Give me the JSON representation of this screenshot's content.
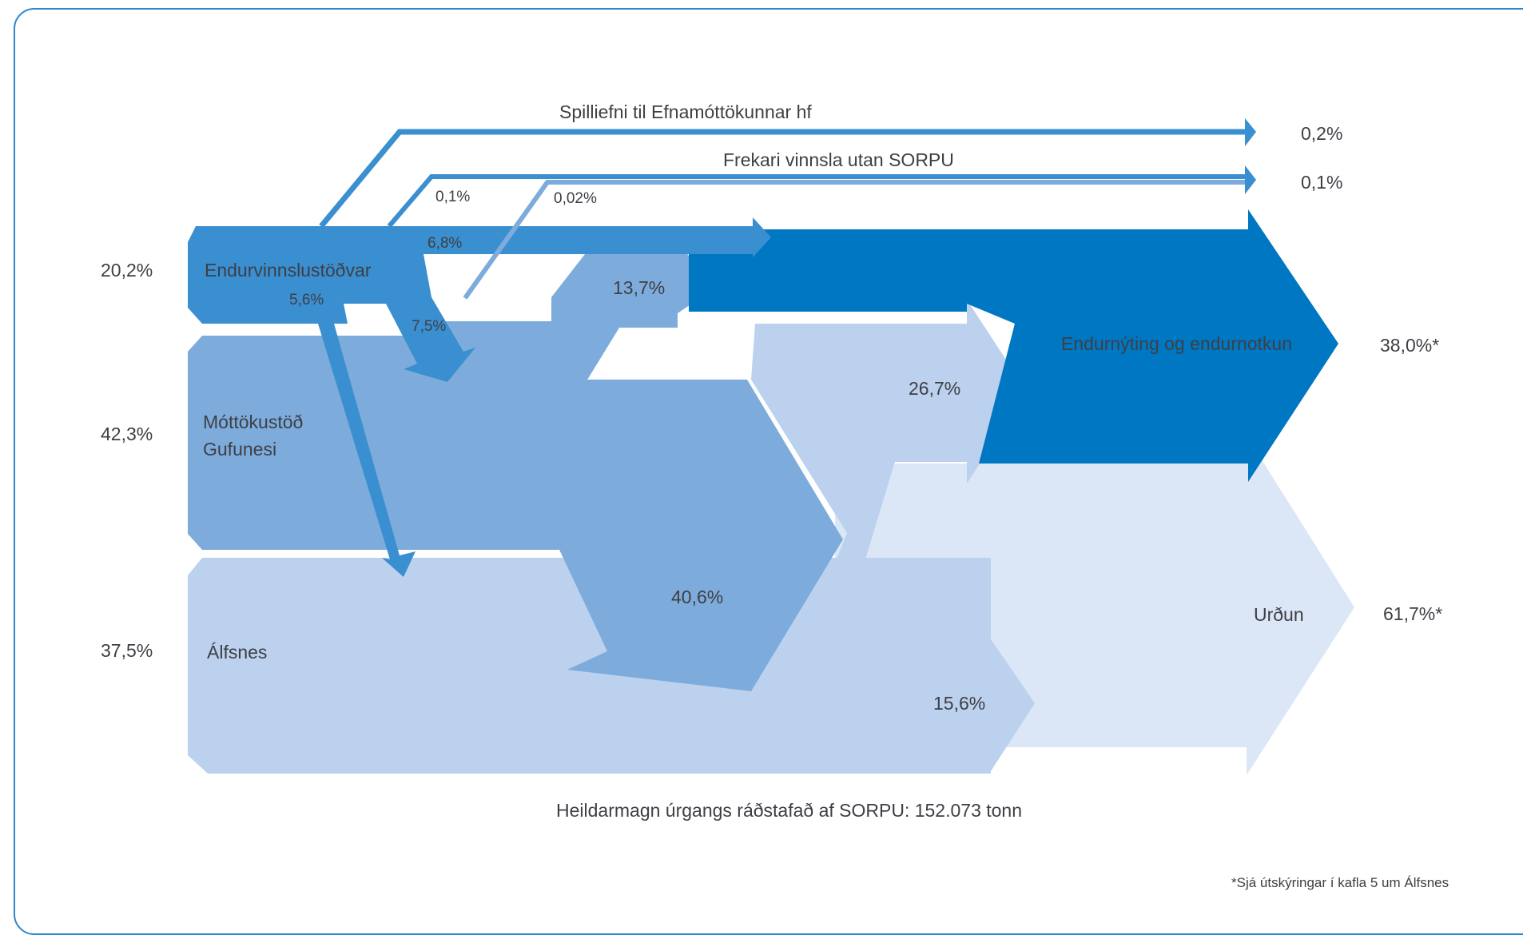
{
  "diagram": {
    "title": "",
    "sources": [
      {
        "name": "Endurvinnslustöðvar",
        "share": "20,2%",
        "value": 20.2
      },
      {
        "name": "Móttökustöð Gufunesi",
        "name_lines": [
          "Móttökustöð",
          "Gufunesi"
        ],
        "share": "42,3%",
        "value": 42.3
      },
      {
        "name": "Álfsnes",
        "share": "37,5%",
        "value": 37.5
      }
    ],
    "destinations": [
      {
        "name": "Endurnýting og endurnotkun",
        "share": "38,0%*",
        "value": 38.0
      },
      {
        "name": "Urðun",
        "share": "61,7%*",
        "value": 61.7
      }
    ],
    "external": [
      {
        "name": "Spilliefni til Efnamóttökunnar hf",
        "share": "0,2%",
        "value": 0.2
      },
      {
        "name": "Frekari vinnsla utan SORPU",
        "share": "0,1%",
        "value": 0.1
      }
    ],
    "flows": [
      {
        "from": "Endurvinnslustöðvar",
        "to": "Endurnýting og endurnotkun",
        "label": "6,8%",
        "value": 6.8
      },
      {
        "from": "Endurvinnslustöðvar",
        "to": "Álfsnes",
        "label": "5,6%",
        "value": 5.6
      },
      {
        "from": "Endurvinnslustöðvar",
        "to": "Móttökustöð Gufunesi",
        "label": "7,5%",
        "value": 7.5
      },
      {
        "from": "Endurvinnslustöðvar",
        "to": "Frekari vinnsla utan SORPU",
        "label": "0,1%",
        "value": 0.1
      },
      {
        "from": "Móttökustöð Gufunesi",
        "to": "Frekari vinnsla utan SORPU",
        "label": "0,02%",
        "value": 0.02
      },
      {
        "from": "Móttökustöð Gufunesi",
        "to": "Endurnýting og endurnotkun",
        "label": "13,7%",
        "value": 13.7
      },
      {
        "from": "Móttökustöð Gufunesi",
        "to": "Urðun",
        "label": "40,6%",
        "value": 40.6
      },
      {
        "from": "Álfsnes",
        "to": "Endurnýting og endurnotkun",
        "label": "26,7%",
        "value": 26.7
      },
      {
        "from": "Álfsnes",
        "to": "Urðun",
        "label": "15,6%",
        "value": 15.6
      }
    ],
    "total_caption": "Heildarmagn úrgangs ráðstafað af SORPU: 152.073 tonn",
    "footnote": "*Sjá útskýringar í kafla 5 um Álfsnes",
    "colors": {
      "frame": "#2f86c8",
      "endurvinnslustodvar": "#3a8fd0",
      "gufunes": "#7dacdc",
      "alfsnes": "#bbd1ee",
      "endurnyting": "#0077c2",
      "urdun": "#dbe7f6",
      "text": "#3e3f45"
    }
  }
}
